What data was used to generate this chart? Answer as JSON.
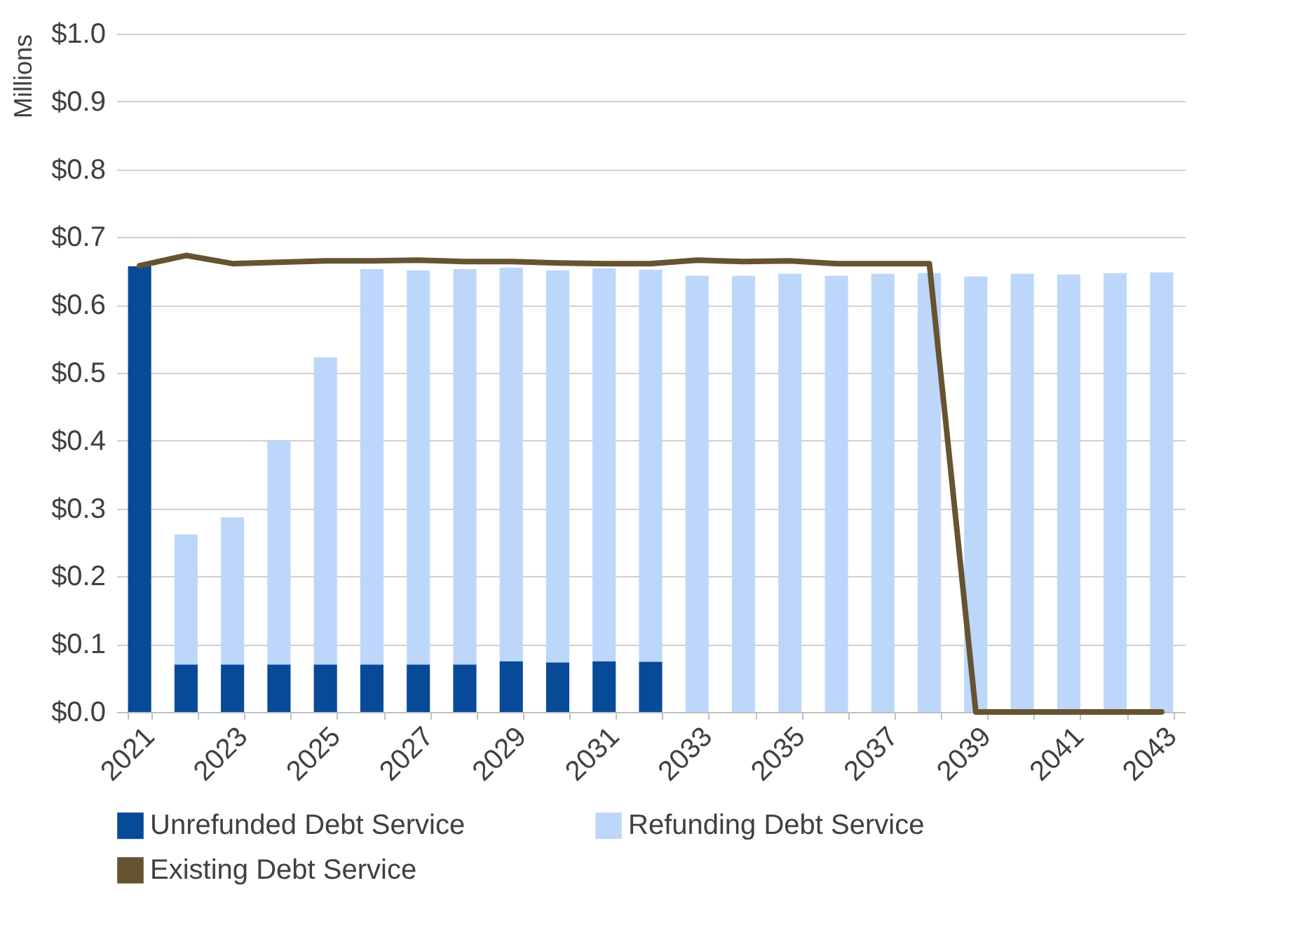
{
  "chart_data": {
    "type": "bar",
    "stacked": true,
    "ylabel": "Millions",
    "categories": [
      "2021",
      null,
      "2023",
      null,
      "2025",
      null,
      "2027",
      null,
      "2029",
      null,
      "2031",
      null,
      "2033",
      null,
      "2035",
      null,
      "2037",
      null,
      "2039",
      null,
      "2041",
      null,
      "2043"
    ],
    "series": [
      {
        "name": "Unrefunded Debt Service",
        "color": "#074a97",
        "values": [
          0.657,
          0.07,
          0.07,
          0.07,
          0.07,
          0.07,
          0.07,
          0.07,
          0.075,
          0.073,
          0.075,
          0.074,
          0,
          0,
          0,
          0,
          0,
          0,
          0,
          0,
          0,
          0,
          0
        ]
      },
      {
        "name": "Refunding Debt Service",
        "color": "#bdd7fb",
        "values": [
          0,
          0.192,
          0.217,
          0.33,
          0.453,
          0.583,
          0.581,
          0.583,
          0.58,
          0.578,
          0.579,
          0.578,
          0.643,
          0.643,
          0.646,
          0.643,
          0.646,
          0.647,
          0.642,
          0.646,
          0.645,
          0.647,
          0.648
        ]
      },
      {
        "name": "Existing Debt Service",
        "type": "line",
        "color": "#665330",
        "values": [
          0.658,
          0.673,
          0.661,
          0.663,
          0.665,
          0.665,
          0.666,
          0.664,
          0.664,
          0.662,
          0.661,
          0.661,
          0.666,
          0.664,
          0.665,
          0.661,
          0.661,
          0.661,
          0,
          0,
          0,
          0,
          0
        ]
      }
    ],
    "ylim": [
      0,
      1
    ],
    "yticks": [
      {
        "value": 0,
        "label": "$0.0"
      },
      {
        "value": 0.1,
        "label": "$0.1"
      },
      {
        "value": 0.2,
        "label": "$0.2"
      },
      {
        "value": 0.3,
        "label": "$0.3"
      },
      {
        "value": 0.4,
        "label": "$0.4"
      },
      {
        "value": 0.5,
        "label": "$0.5"
      },
      {
        "value": 0.6,
        "label": "$0.6"
      },
      {
        "value": 0.7,
        "label": "$0.7"
      },
      {
        "value": 0.8,
        "label": "$0.8"
      },
      {
        "value": 0.9,
        "label": "$0.9"
      },
      {
        "value": 1,
        "label": "$1.0"
      }
    ],
    "grid": "y",
    "legend": "bottom"
  }
}
